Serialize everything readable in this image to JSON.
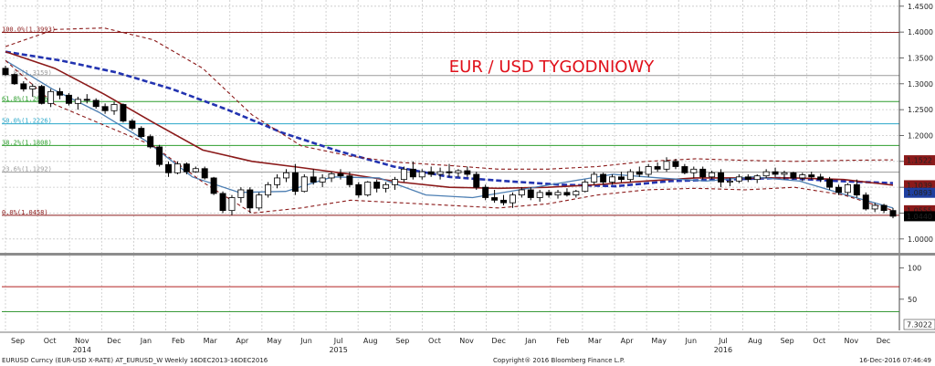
{
  "chart_data": {
    "type": "candlestick",
    "title": "EUR / USD TYGODNIOWY",
    "instrument": "EURUSD",
    "main_panel": {
      "ylim": [
        0.975,
        1.462
      ],
      "y_ticks": [
        {
          "value": 1.45,
          "label": "1.4500"
        },
        {
          "value": 1.4,
          "label": "1.4000"
        },
        {
          "value": 1.35,
          "label": "1.3500"
        },
        {
          "value": 1.3,
          "label": "1.3000"
        },
        {
          "value": 1.25,
          "label": "1.2500"
        },
        {
          "value": 1.2,
          "label": "1.2000"
        },
        {
          "value": 1.15,
          "label": "1.1500"
        },
        {
          "value": 1.1,
          "label": "1.1000"
        },
        {
          "value": 1.05,
          "label": "1.0500"
        },
        {
          "value": 1.0,
          "label": "1.0000"
        }
      ],
      "price_tags": [
        {
          "value": 1.1522,
          "label": "1.1522",
          "color": "#8b1a1a"
        },
        {
          "value": 1.1039,
          "label": "1.1039",
          "color": "#8b1a1a"
        },
        {
          "value": 1.0893,
          "label": "1.0893",
          "color": "#1f3f9f"
        },
        {
          "value": 1.0555,
          "label": "1.0555",
          "color": "#8b1a1a"
        },
        {
          "value": 1.044,
          "label": "1.0440",
          "color": "#000000"
        }
      ],
      "fibonacci": [
        {
          "level": 1.3993,
          "label": "100.0%(1.3993)",
          "color": "#8b1a1a"
        },
        {
          "level": 1.3159,
          "label": "61.8%(1.3159)",
          "color": "#9a9a9a"
        },
        {
          "level": 1.2656,
          "label": "61.8%(1.2656)",
          "color": "#2e9e2e"
        },
        {
          "level": 1.2226,
          "label": "50.0%(1.2226)",
          "color": "#2aa7c9"
        },
        {
          "level": 1.1808,
          "label": "38.2%(1.1808)",
          "color": "#2e9e2e"
        },
        {
          "level": 1.1292,
          "label": "23.6%(1.1292)",
          "color": "#9a9a9a"
        },
        {
          "level": 1.0458,
          "label": "0.0%(1.0458)",
          "color": "#8b1a1a"
        }
      ],
      "candles": [
        [
          1.33,
          1.335,
          1.315,
          1.318
        ],
        [
          1.318,
          1.32,
          1.298,
          1.3
        ],
        [
          1.3,
          1.305,
          1.285,
          1.29
        ],
        [
          1.29,
          1.3,
          1.275,
          1.295
        ],
        [
          1.295,
          1.298,
          1.26,
          1.262
        ],
        [
          1.262,
          1.29,
          1.255,
          1.285
        ],
        [
          1.285,
          1.292,
          1.27,
          1.278
        ],
        [
          1.278,
          1.282,
          1.258,
          1.262
        ],
        [
          1.262,
          1.275,
          1.25,
          1.27
        ],
        [
          1.27,
          1.28,
          1.262,
          1.268
        ],
        [
          1.268,
          1.272,
          1.252,
          1.256
        ],
        [
          1.256,
          1.262,
          1.242,
          1.248
        ],
        [
          1.248,
          1.265,
          1.24,
          1.26
        ],
        [
          1.26,
          1.262,
          1.225,
          1.228
        ],
        [
          1.228,
          1.232,
          1.21,
          1.214
        ],
        [
          1.214,
          1.218,
          1.195,
          1.198
        ],
        [
          1.198,
          1.202,
          1.175,
          1.178
        ],
        [
          1.178,
          1.182,
          1.14,
          1.144
        ],
        [
          1.144,
          1.15,
          1.12,
          1.128
        ],
        [
          1.128,
          1.15,
          1.125,
          1.145
        ],
        [
          1.145,
          1.148,
          1.125,
          1.13
        ],
        [
          1.13,
          1.14,
          1.128,
          1.136
        ],
        [
          1.136,
          1.14,
          1.115,
          1.118
        ],
        [
          1.118,
          1.12,
          1.085,
          1.088
        ],
        [
          1.088,
          1.092,
          1.05,
          1.055
        ],
        [
          1.055,
          1.085,
          1.046,
          1.08
        ],
        [
          1.08,
          1.1,
          1.07,
          1.095
        ],
        [
          1.095,
          1.1,
          1.05,
          1.06
        ],
        [
          1.06,
          1.09,
          1.055,
          1.085
        ],
        [
          1.085,
          1.11,
          1.08,
          1.105
        ],
        [
          1.105,
          1.125,
          1.098,
          1.118
        ],
        [
          1.118,
          1.135,
          1.11,
          1.128
        ],
        [
          1.128,
          1.145,
          1.085,
          1.092
        ],
        [
          1.092,
          1.125,
          1.09,
          1.12
        ],
        [
          1.12,
          1.135,
          1.105,
          1.11
        ],
        [
          1.11,
          1.125,
          1.1,
          1.118
        ],
        [
          1.118,
          1.13,
          1.11,
          1.126
        ],
        [
          1.126,
          1.135,
          1.115,
          1.122
        ],
        [
          1.122,
          1.13,
          1.1,
          1.105
        ],
        [
          1.105,
          1.11,
          1.08,
          1.085
        ],
        [
          1.085,
          1.112,
          1.082,
          1.11
        ],
        [
          1.11,
          1.115,
          1.09,
          1.098
        ],
        [
          1.098,
          1.11,
          1.09,
          1.105
        ],
        [
          1.105,
          1.12,
          1.095,
          1.115
        ],
        [
          1.115,
          1.14,
          1.11,
          1.135
        ],
        [
          1.135,
          1.15,
          1.115,
          1.12
        ],
        [
          1.12,
          1.135,
          1.115,
          1.13
        ],
        [
          1.13,
          1.14,
          1.12,
          1.125
        ],
        [
          1.125,
          1.138,
          1.115,
          1.13
        ],
        [
          1.13,
          1.145,
          1.12,
          1.128
        ],
        [
          1.128,
          1.135,
          1.12,
          1.132
        ],
        [
          1.132,
          1.14,
          1.12,
          1.125
        ],
        [
          1.125,
          1.13,
          1.095,
          1.1
        ],
        [
          1.1,
          1.105,
          1.075,
          1.08
        ],
        [
          1.08,
          1.095,
          1.07,
          1.075
        ],
        [
          1.075,
          1.085,
          1.065,
          1.07
        ],
        [
          1.07,
          1.09,
          1.06,
          1.085
        ],
        [
          1.085,
          1.1,
          1.08,
          1.095
        ],
        [
          1.095,
          1.1,
          1.075,
          1.08
        ],
        [
          1.08,
          1.095,
          1.072,
          1.09
        ],
        [
          1.09,
          1.095,
          1.08,
          1.085
        ],
        [
          1.085,
          1.095,
          1.078,
          1.09
        ],
        [
          1.09,
          1.098,
          1.082,
          1.085
        ],
        [
          1.085,
          1.095,
          1.08,
          1.092
        ],
        [
          1.092,
          1.115,
          1.09,
          1.11
        ],
        [
          1.11,
          1.13,
          1.105,
          1.125
        ],
        [
          1.125,
          1.128,
          1.105,
          1.11
        ],
        [
          1.11,
          1.125,
          1.105,
          1.12
        ],
        [
          1.12,
          1.13,
          1.11,
          1.115
        ],
        [
          1.115,
          1.135,
          1.11,
          1.13
        ],
        [
          1.13,
          1.14,
          1.12,
          1.125
        ],
        [
          1.125,
          1.145,
          1.12,
          1.14
        ],
        [
          1.14,
          1.148,
          1.13,
          1.135
        ],
        [
          1.135,
          1.158,
          1.13,
          1.15
        ],
        [
          1.15,
          1.155,
          1.135,
          1.14
        ],
        [
          1.14,
          1.145,
          1.125,
          1.128
        ],
        [
          1.128,
          1.14,
          1.118,
          1.135
        ],
        [
          1.135,
          1.14,
          1.115,
          1.12
        ],
        [
          1.12,
          1.132,
          1.115,
          1.128
        ],
        [
          1.128,
          1.135,
          1.1,
          1.11
        ],
        [
          1.11,
          1.118,
          1.102,
          1.112
        ],
        [
          1.112,
          1.125,
          1.108,
          1.12
        ],
        [
          1.12,
          1.125,
          1.11,
          1.115
        ],
        [
          1.115,
          1.125,
          1.108,
          1.122
        ],
        [
          1.122,
          1.135,
          1.118,
          1.13
        ],
        [
          1.13,
          1.138,
          1.12,
          1.125
        ],
        [
          1.125,
          1.132,
          1.115,
          1.128
        ],
        [
          1.128,
          1.13,
          1.115,
          1.118
        ],
        [
          1.118,
          1.128,
          1.112,
          1.124
        ],
        [
          1.124,
          1.13,
          1.115,
          1.12
        ],
        [
          1.12,
          1.126,
          1.11,
          1.115
        ],
        [
          1.115,
          1.12,
          1.095,
          1.1
        ],
        [
          1.1,
          1.105,
          1.085,
          1.09
        ],
        [
          1.09,
          1.108,
          1.085,
          1.105
        ],
        [
          1.105,
          1.115,
          1.08,
          1.085
        ],
        [
          1.085,
          1.09,
          1.055,
          1.058
        ],
        [
          1.058,
          1.07,
          1.052,
          1.065
        ],
        [
          1.065,
          1.068,
          1.05,
          1.055
        ],
        [
          1.055,
          1.06,
          1.04,
          1.044
        ]
      ],
      "series": [
        {
          "name": "SMA long",
          "color": "#2233b0",
          "style": "dashed",
          "values": [
            1.362,
            1.345,
            1.322,
            1.29,
            1.25,
            1.205,
            1.17,
            1.14,
            1.12,
            1.112,
            1.105,
            1.102,
            1.112,
            1.115,
            1.118,
            1.112,
            1.108
          ]
        },
        {
          "name": "SMA mid",
          "color": "#8b1a1a",
          "style": "solid",
          "values": [
            1.362,
            1.33,
            1.28,
            1.225,
            1.172,
            1.15,
            1.138,
            1.125,
            1.11,
            1.1,
            1.098,
            1.1,
            1.105,
            1.112,
            1.118,
            1.118,
            1.118,
            1.115,
            1.104
          ]
        },
        {
          "name": "SMA short",
          "color": "#4d7fb3",
          "style": "solid",
          "values": [
            1.345,
            1.29,
            1.245,
            1.19,
            1.12,
            1.09,
            1.092,
            1.12,
            1.118,
            1.085,
            1.08,
            1.095,
            1.11,
            1.125,
            1.118,
            1.112,
            1.12,
            1.112,
            1.085,
            1.06
          ]
        },
        {
          "name": "Bollinger upper",
          "color": "#8b1a1a",
          "style": "dashed",
          "values": [
            1.372,
            1.405,
            1.408,
            1.385,
            1.33,
            1.24,
            1.18,
            1.16,
            1.148,
            1.142,
            1.135,
            1.135,
            1.14,
            1.15,
            1.155,
            1.152,
            1.15,
            1.152,
            1.153
          ]
        },
        {
          "name": "Bollinger lower",
          "color": "#8b1a1a",
          "style": "dashed",
          "values": [
            1.345,
            1.26,
            1.22,
            1.18,
            1.11,
            1.05,
            1.06,
            1.075,
            1.07,
            1.065,
            1.06,
            1.068,
            1.085,
            1.095,
            1.098,
            1.095,
            1.1,
            1.085,
            1.055
          ]
        }
      ]
    },
    "rsi_panel": {
      "ylim": [
        0,
        120
      ],
      "y_ticks": [
        {
          "value": 100,
          "label": "100"
        },
        {
          "value": 50,
          "label": "50"
        }
      ],
      "current_tag": "7.3022",
      "levels": [
        {
          "value": 70,
          "color": "#b22222"
        },
        {
          "value": 30,
          "color": "#3a9a3a"
        }
      ]
    },
    "x_axis": {
      "months": [
        "Sep",
        "Oct",
        "Nov",
        "Dec",
        "Jan",
        "Feb",
        "Mar",
        "Apr",
        "May",
        "Jun",
        "Jul",
        "Aug",
        "Sep",
        "Oct",
        "Nov",
        "Dec",
        "Jan",
        "Feb",
        "Mar",
        "Apr",
        "May",
        "Jun",
        "Jul",
        "Aug",
        "Sep",
        "Oct",
        "Nov",
        "Dec"
      ],
      "years": [
        "2014",
        "2015",
        "2016"
      ]
    }
  },
  "footer": {
    "left": "EURUSD Curncy (EUR-USD X-RATE) AT_EURUSD_W  Weekly 16DEC2013-16DEC2016",
    "center": "Copyright® 2016 Bloomberg Finance L.P.",
    "right": "16-Dec-2016 07:46:49"
  },
  "colors": {
    "bull_candle": "#ffffff",
    "bear_candle": "#000000",
    "title": "#e0101a",
    "grid": "#b5b5b5"
  }
}
